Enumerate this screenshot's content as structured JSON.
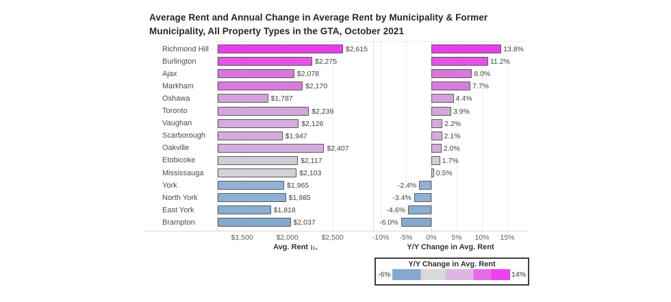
{
  "title": {
    "line1": "Average Rent and Annual Change in Average Rent by Municipality & Former",
    "line2": "Municipality, All Property Types in the GTA, October 2021"
  },
  "chart_data": {
    "type": "bar",
    "orientation": "horizontal",
    "title": "Average Rent and Annual Change in Average Rent by Municipality & Former Municipality, All Property Types in the GTA, October 2021",
    "categories": [
      "Richmond Hill",
      "Burlington",
      "Ajax",
      "Markham",
      "Oshawa",
      "Toronto",
      "Vaughan",
      "Scarborough",
      "Oakville",
      "Etobicoke",
      "Mississauga",
      "York",
      "North York",
      "East York",
      "Brampton"
    ],
    "series": [
      {
        "name": "Avg. Rent",
        "axis_title": "Avg. Rent",
        "values": [
          2615,
          2275,
          2078,
          2170,
          1787,
          2239,
          2126,
          1947,
          2407,
          2117,
          2103,
          1965,
          1985,
          1818,
          2037
        ],
        "labels": [
          "$2,615",
          "$2,275",
          "$2,078",
          "$2,170",
          "$1,787",
          "$2,239",
          "$2,126",
          "$1,947",
          "$2,407",
          "$2,117",
          "$2,103",
          "$1,965",
          "$1,985",
          "$1,818",
          "$2,037"
        ],
        "ticks": [
          {
            "label": "$1,500",
            "value": 1500
          },
          {
            "label": "$2,000",
            "value": 2000
          },
          {
            "label": "$2,500",
            "value": 2500
          }
        ],
        "xlim": [
          1230,
          2900
        ]
      },
      {
        "name": "Y/Y Change in Avg. Rent",
        "axis_title": "Y/Y Change in Avg. Rent",
        "values": [
          13.8,
          11.2,
          8.0,
          7.7,
          4.4,
          3.9,
          2.2,
          2.1,
          2.0,
          1.7,
          0.5,
          -2.4,
          -3.4,
          -4.6,
          -6.0
        ],
        "labels": [
          "13.8%",
          "11.2%",
          "8.0%",
          "7.7%",
          "4.4%",
          "3.9%",
          "2.2%",
          "2.1%",
          "2.0%",
          "1.7%",
          "0.5%",
          "-2.4%",
          "-3.4%",
          "-4.6%",
          "-6.0%"
        ],
        "ticks": [
          {
            "label": "-10%",
            "value": -10
          },
          {
            "label": "-5%",
            "value": -5
          },
          {
            "label": "0%",
            "value": 0
          },
          {
            "label": "5%",
            "value": 5
          },
          {
            "label": "10%",
            "value": 10
          },
          {
            "label": "15%",
            "value": 15
          }
        ],
        "xlim": [
          -10.8,
          18.6
        ]
      }
    ],
    "bar_colors": [
      "#e93ded",
      "#e552e8",
      "#d978dc",
      "#d97bdc",
      "#d3a2d9",
      "#d4a6da",
      "#d5aadc",
      "#d5abdc",
      "#d6acdd",
      "#d3cbd5",
      "#d3d2d4",
      "#92b2d5",
      "#8eb0d3",
      "#8aadd2",
      "#84a9cf"
    ],
    "grid": "dotted-vertical",
    "legend_position": "bottom-right"
  },
  "legend": {
    "title": "Y/Y Change in Avg. Rent",
    "min_label": "-6%",
    "max_label": "14%",
    "gradient_colors": [
      "#84a9cf",
      "#d9d9d9",
      "#ddb6e4",
      "#e26ce6",
      "#ef3ff2"
    ],
    "min_value": -6,
    "max_value": 14
  }
}
